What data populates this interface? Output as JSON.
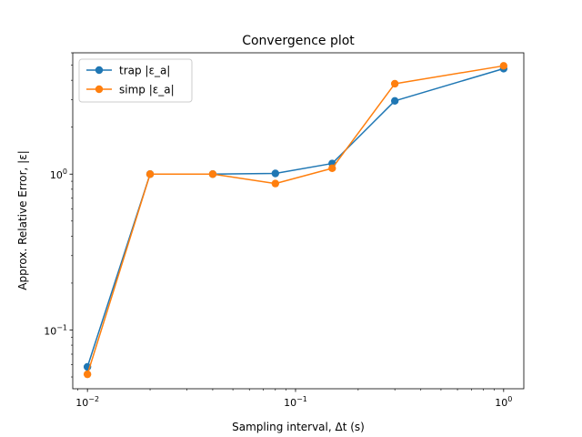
{
  "chart_data": {
    "type": "line",
    "title": "Convergence plot",
    "xlabel": "Sampling interval, Δt (s)",
    "ylabel": "Approx. Relative Error, |ε|",
    "xscale": "log",
    "yscale": "log",
    "xlim": [
      0.0085,
      1.25
    ],
    "ylim": [
      0.042,
      6.0
    ],
    "grid": false,
    "legend_position": "top-left",
    "x": [
      0.01,
      0.02,
      0.04,
      0.08,
      0.15,
      0.3,
      1.0
    ],
    "xticks": [
      {
        "value": 0.01,
        "base": "10",
        "exp": "−2"
      },
      {
        "value": 0.1,
        "base": "10",
        "exp": "−1"
      },
      {
        "value": 1,
        "base": "10",
        "exp": "0"
      }
    ],
    "yticks": [
      {
        "value": 0.1,
        "base": "10",
        "exp": "−1"
      },
      {
        "value": 1,
        "base": "10",
        "exp": "0"
      }
    ],
    "series": [
      {
        "name": "trap |ε_a|",
        "color": "#1f77b4",
        "values": [
          0.058,
          1.0,
          1.0,
          1.01,
          1.17,
          2.95,
          4.75
        ]
      },
      {
        "name": "simp |ε_a|",
        "color": "#ff7f0e",
        "values": [
          0.052,
          1.0,
          1.0,
          0.87,
          1.09,
          3.8,
          4.95
        ]
      }
    ]
  }
}
